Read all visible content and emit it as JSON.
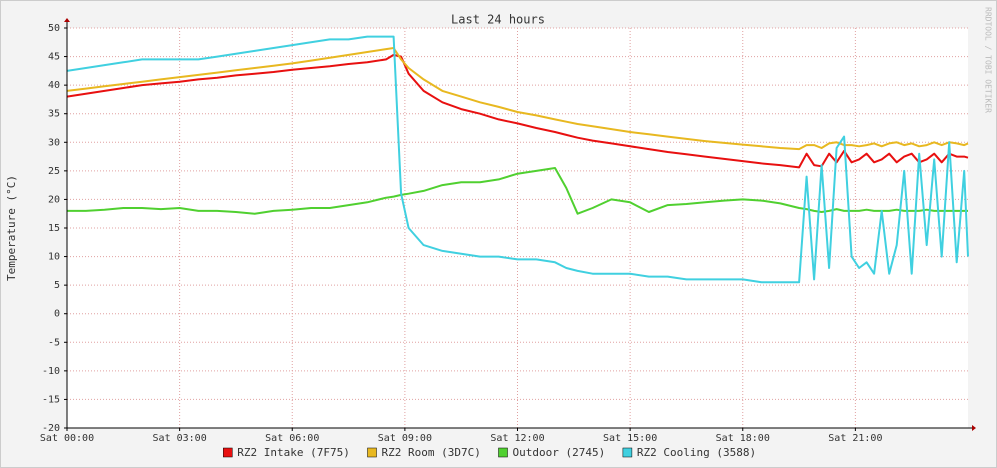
{
  "chart_data": {
    "type": "line",
    "title": "Last 24 hours",
    "y_label": "Temperature (°C)",
    "watermark": "RRDTOOL / TOBI OETIKER",
    "x": [
      0,
      0.5,
      1,
      1.5,
      2,
      2.5,
      3,
      3.5,
      4,
      4.5,
      5,
      5.5,
      6,
      6.5,
      7,
      7.5,
      8,
      8.5,
      8.7,
      8.9,
      9.1,
      9.5,
      10,
      10.5,
      11,
      11.5,
      12,
      12.5,
      13,
      13.3,
      13.6,
      14,
      14.5,
      15,
      15.5,
      16,
      16.5,
      17,
      17.5,
      18,
      18.5,
      19,
      19.5,
      19.7,
      19.9,
      20.1,
      20.3,
      20.5,
      20.7,
      20.9,
      21.1,
      21.3,
      21.5,
      21.7,
      21.9,
      22.1,
      22.3,
      22.5,
      22.7,
      22.9,
      23.1,
      23.3,
      23.5,
      23.7,
      23.9,
      24
    ],
    "xlim": [
      0,
      24
    ],
    "xticks": [
      {
        "value": 0,
        "label": "Sat 00:00"
      },
      {
        "value": 3,
        "label": "Sat 03:00"
      },
      {
        "value": 6,
        "label": "Sat 06:00"
      },
      {
        "value": 9,
        "label": "Sat 09:00"
      },
      {
        "value": 12,
        "label": "Sat 12:00"
      },
      {
        "value": 15,
        "label": "Sat 15:00"
      },
      {
        "value": 18,
        "label": "Sat 18:00"
      },
      {
        "value": 21,
        "label": "Sat 21:00"
      }
    ],
    "ylim": [
      -20,
      50
    ],
    "yticks": [
      -20,
      -15,
      -10,
      -5,
      0,
      5,
      10,
      15,
      20,
      25,
      30,
      35,
      40,
      45,
      50
    ],
    "grid": true,
    "legend": "bottom",
    "series": [
      {
        "name": "RZ2 Intake (7F75)",
        "color": "#e81010",
        "values": [
          38,
          38.5,
          39,
          39.5,
          40,
          40.3,
          40.6,
          41,
          41.3,
          41.7,
          42,
          42.3,
          42.7,
          43,
          43.3,
          43.7,
          44,
          44.5,
          45.3,
          45,
          42,
          39,
          37,
          35.8,
          35,
          34,
          33.3,
          32.5,
          31.8,
          31.3,
          30.8,
          30.3,
          29.8,
          29.3,
          28.8,
          28.3,
          27.9,
          27.5,
          27.1,
          26.7,
          26.3,
          26,
          25.6,
          28,
          26,
          25.8,
          28,
          26.5,
          28.5,
          26.5,
          27,
          28,
          26.5,
          27,
          28,
          26.5,
          27.5,
          28,
          26.5,
          27,
          28,
          26.5,
          28,
          27.5,
          27.5,
          27.3
        ]
      },
      {
        "name": "RZ2 Room (3D7C)",
        "color": "#e8b820",
        "values": [
          39,
          39.4,
          39.8,
          40.2,
          40.6,
          41,
          41.4,
          41.8,
          42.2,
          42.6,
          43,
          43.4,
          43.8,
          44.3,
          44.8,
          45.3,
          45.8,
          46.3,
          46.5,
          44.5,
          43,
          41,
          39,
          38,
          37,
          36.2,
          35.3,
          34.7,
          34,
          33.6,
          33.2,
          32.8,
          32.3,
          31.8,
          31.4,
          31,
          30.6,
          30.2,
          29.9,
          29.6,
          29.3,
          29,
          28.8,
          29.5,
          29.5,
          29,
          29.8,
          30,
          29.5,
          29.5,
          29.3,
          29.5,
          29.8,
          29.3,
          29.8,
          30,
          29.5,
          29.8,
          29.3,
          29.5,
          30,
          29.5,
          30,
          29.8,
          29.5,
          29.8
        ]
      },
      {
        "name": "Outdoor (2745)",
        "color": "#50d030",
        "values": [
          18,
          18,
          18.2,
          18.5,
          18.5,
          18.3,
          18.5,
          18,
          18,
          17.8,
          17.5,
          18,
          18.2,
          18.5,
          18.5,
          19,
          19.5,
          20.3,
          20.5,
          20.8,
          21,
          21.5,
          22.5,
          23,
          23,
          23.5,
          24.5,
          25,
          25.5,
          22,
          17.5,
          18.5,
          20,
          19.5,
          17.8,
          19,
          19.2,
          19.5,
          19.8,
          20,
          19.8,
          19.3,
          18.5,
          18.3,
          18,
          17.8,
          18,
          18.3,
          18,
          18,
          18,
          18.2,
          18,
          18,
          18,
          18.2,
          18,
          18,
          18,
          18.2,
          18,
          18,
          18,
          18,
          18,
          18
        ]
      },
      {
        "name": "RZ2 Cooling (3588)",
        "color": "#40d0e0",
        "values": [
          42.5,
          43,
          43.5,
          44,
          44.5,
          44.5,
          44.5,
          44.5,
          45,
          45.5,
          46,
          46.5,
          47,
          47.5,
          48,
          48,
          48.5,
          48.5,
          48.5,
          21,
          15,
          12,
          11,
          10.5,
          10,
          10,
          9.5,
          9.5,
          9,
          8,
          7.5,
          7,
          7,
          7,
          6.5,
          6.5,
          6,
          6,
          6,
          6,
          5.5,
          5.5,
          5.5,
          24,
          6,
          26,
          8,
          29,
          31,
          10,
          8,
          9,
          7,
          18,
          7,
          12,
          25,
          7,
          28,
          12,
          27,
          10,
          30,
          9,
          25,
          10
        ]
      }
    ]
  }
}
